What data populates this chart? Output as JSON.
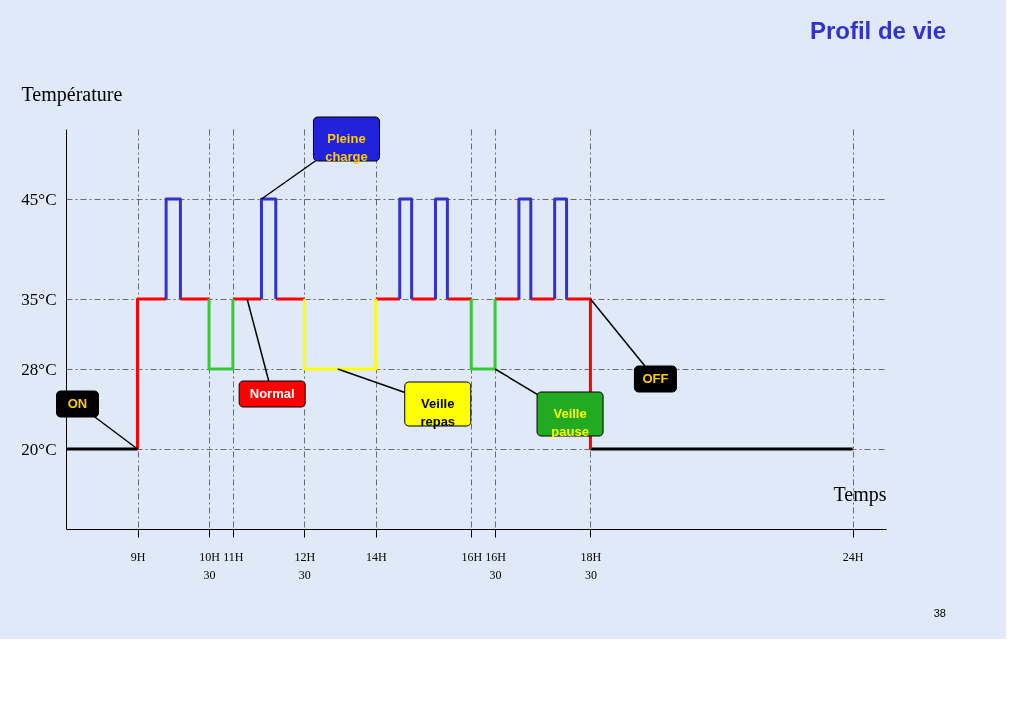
{
  "chart_data": {
    "type": "line",
    "title": "Profil de vie",
    "xlabel": "Temps",
    "ylabel": "Température",
    "xlim": [
      7.5,
      24.7
    ],
    "ylim": [
      12,
      52
    ],
    "xticks": [
      {
        "value": 9,
        "label": "9H"
      },
      {
        "value": 10.5,
        "label": "10H 30"
      },
      {
        "value": 11,
        "label": "11H"
      },
      {
        "value": 12.5,
        "label": "12H 30"
      },
      {
        "value": 14,
        "label": "14H"
      },
      {
        "value": 16,
        "label": "16H"
      },
      {
        "value": 16.5,
        "label": "16H 30"
      },
      {
        "value": 18.5,
        "label": "18H 30"
      },
      {
        "value": 24,
        "label": "24H"
      }
    ],
    "yticks": [
      {
        "value": 20,
        "label": "20°C"
      },
      {
        "value": 28,
        "label": "28°C"
      },
      {
        "value": 35,
        "label": "35°C"
      },
      {
        "value": 45,
        "label": "45°C"
      }
    ],
    "grid": true,
    "line_style": "solid",
    "series": [
      {
        "color": "#000000",
        "x": [
          7.5,
          9,
          null,
          18.5,
          24
        ],
        "values": [
          20,
          20,
          null,
          20,
          20
        ]
      },
      {
        "color": "#ff0000",
        "x": [
          9,
          9,
          9.6,
          null,
          9.9,
          10.5,
          null,
          11,
          11.6,
          null,
          11.9,
          12.5,
          null,
          14,
          14.5,
          null,
          14.75,
          15.25,
          null,
          15.5,
          16,
          null,
          16.5,
          17,
          null,
          17.25,
          17.75,
          null,
          18,
          18.5,
          18.5
        ],
        "values": [
          20,
          35,
          35,
          null,
          35,
          35,
          null,
          35,
          35,
          null,
          35,
          35,
          null,
          35,
          35,
          null,
          35,
          35,
          null,
          35,
          35,
          null,
          35,
          35,
          null,
          35,
          35,
          null,
          35,
          35,
          20
        ]
      },
      {
        "color": "#3333cc",
        "x": [
          9.6,
          9.6,
          9.9,
          9.9,
          null,
          11.6,
          11.6,
          11.9,
          11.9,
          null,
          14.5,
          14.5,
          14.75,
          14.75,
          null,
          15.25,
          15.25,
          15.5,
          15.5,
          null,
          17,
          17,
          17.25,
          17.25,
          null,
          17.75,
          17.75,
          18,
          18
        ],
        "values": [
          35,
          45,
          45,
          35,
          null,
          35,
          45,
          45,
          35,
          null,
          35,
          45,
          45,
          35,
          null,
          35,
          45,
          45,
          35,
          null,
          35,
          45,
          45,
          35,
          null,
          35,
          45,
          45,
          35
        ]
      },
      {
        "color": "#33cc33",
        "x": [
          10.5,
          10.5,
          11,
          11,
          null,
          16,
          16,
          16.5,
          16.5
        ],
        "values": [
          35,
          28,
          28,
          35,
          null,
          35,
          28,
          28,
          35
        ]
      },
      {
        "color": "#ffff00",
        "x": [
          12.5,
          12.5,
          14,
          14
        ],
        "values": [
          35,
          28,
          28,
          35
        ]
      }
    ],
    "annotations": [
      {
        "text": "ON",
        "x": 9,
        "y": 20
      },
      {
        "text": "Normal",
        "x": 11.3,
        "y": 35
      },
      {
        "text": "Pleine charge",
        "x": 11.6,
        "y": 45
      },
      {
        "text": "Veille repas",
        "x": 13.2,
        "y": 28
      },
      {
        "text": "Veille pause",
        "x": 16.5,
        "y": 28
      },
      {
        "text": "OFF",
        "x": 18.5,
        "y": 35
      },
      "38"
    ]
  }
}
